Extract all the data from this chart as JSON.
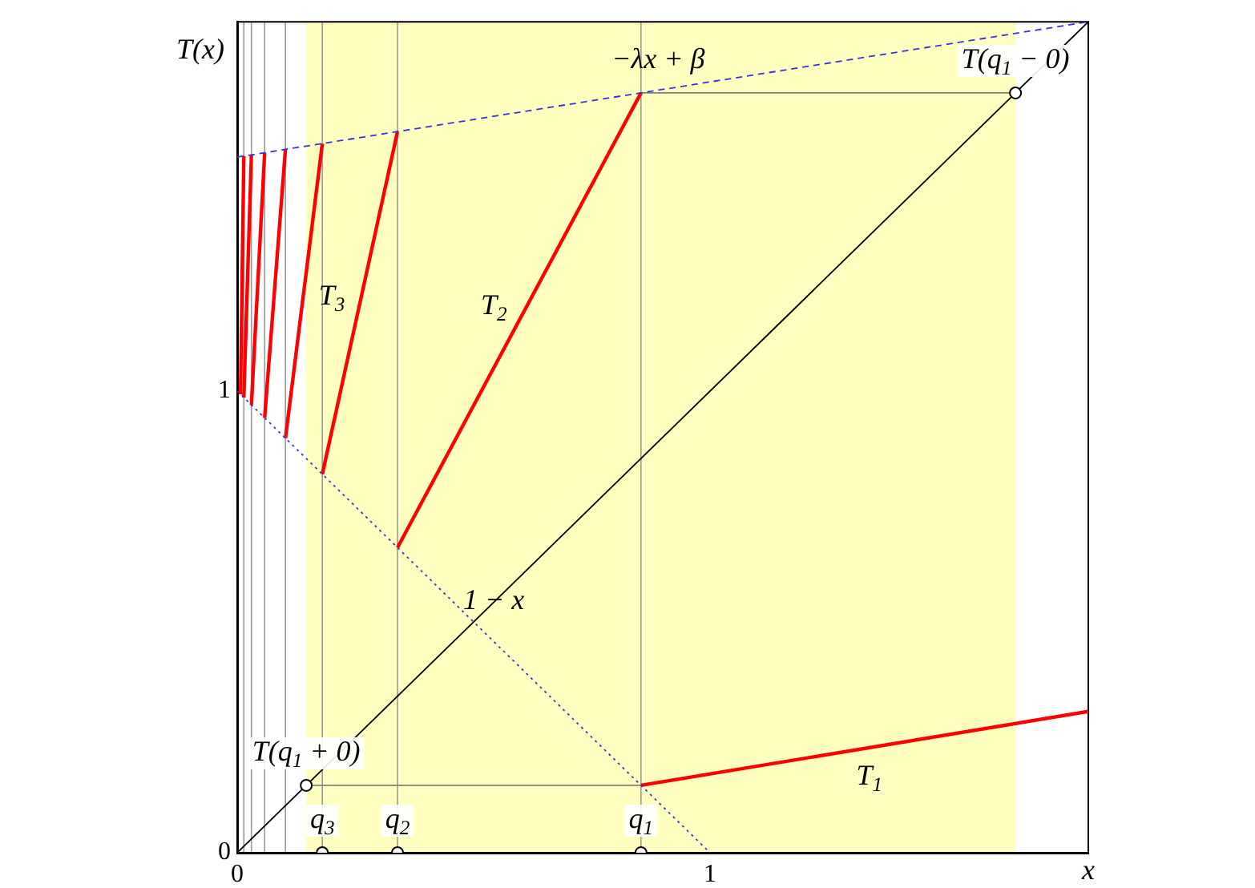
{
  "chart_data": {
    "type": "line",
    "xlabel": "x",
    "ylabel": "T(x)",
    "xlim": [
      0,
      1.8
    ],
    "ylim": [
      0,
      1.8
    ],
    "xticks": [
      0,
      1
    ],
    "yticks": [
      0,
      1
    ],
    "grid": false,
    "legend": false,
    "series": [
      {
        "color": "#000000",
        "line_style": "solid",
        "marker": "none",
        "x": [
          0,
          1.8
        ],
        "values": [
          0,
          1.8
        ]
      },
      {
        "name": "−λx + β",
        "color": "#3333dd",
        "line_style": "dashed",
        "marker": "none",
        "x": [
          0,
          1.8
        ],
        "values": [
          1.507,
          1.8
        ]
      },
      {
        "name": "1 − x",
        "color": "#3333dd",
        "line_style": "dotted",
        "marker": "none",
        "x": [
          0,
          1
        ],
        "values": [
          1,
          0
        ]
      },
      {
        "color": "#808080",
        "line_style": "solid",
        "marker": "none",
        "x": [
          0.854,
          0.146
        ],
        "values": [
          0.146,
          0.146
        ]
      },
      {
        "color": "#808080",
        "line_style": "solid",
        "marker": "none",
        "x": [
          0.854,
          1.646
        ],
        "values": [
          1.646,
          1.646
        ]
      },
      {
        "name": "T$_{1}$",
        "color": "#ff0000",
        "line_style": "solid",
        "marker": "none",
        "x": [
          1.8,
          0.854
        ],
        "values": [
          0.306,
          0.146
        ]
      },
      {
        "name": "T$_{2}$",
        "color": "#ff0000",
        "line_style": "solid",
        "marker": "none",
        "x": [
          0.339,
          0.854
        ],
        "values": [
          0.661,
          1.646
        ]
      },
      {
        "name": "T$_{3}$",
        "color": "#ff0000",
        "line_style": "solid",
        "marker": "none",
        "x": [
          0.18,
          0.339
        ],
        "values": [
          0.82,
          1.562
        ]
      },
      {
        "color": "#ff0000",
        "line_style": "solid",
        "marker": "none",
        "x": [
          0.102,
          0.18
        ],
        "values": [
          0.898,
          1.536
        ]
      },
      {
        "color": "#ff0000",
        "line_style": "solid",
        "marker": "none",
        "x": [
          0.058,
          0.102
        ],
        "values": [
          0.942,
          1.524
        ]
      },
      {
        "color": "#ff0000",
        "line_style": "solid",
        "marker": "none",
        "x": [
          0.03,
          0.058
        ],
        "values": [
          0.97,
          1.516
        ]
      },
      {
        "color": "#ff0000",
        "line_style": "solid",
        "marker": "none",
        "x": [
          0.014,
          0.03
        ],
        "values": [
          0.986,
          1.512
        ]
      },
      {
        "color": "#ff0000",
        "line_style": "solid",
        "marker": "none",
        "x": [
          0.007,
          0.014
        ],
        "values": [
          0.993,
          1.509
        ]
      },
      {
        "type": "scatter",
        "color": "#000000",
        "marker": "circle",
        "x": [
          0.18,
          0.339,
          0.854,
          0.146,
          1.646
        ],
        "values": [
          0,
          0,
          0,
          0.146,
          1.646
        ]
      }
    ],
    "bands": [
      {
        "axis": "x",
        "from": 0.146,
        "to": 1.646,
        "color": "#ffffc0"
      }
    ],
    "ref_lines": [
      {
        "axis": "x",
        "value": 0.014,
        "color": "#999999"
      },
      {
        "axis": "x",
        "value": 0.03,
        "color": "#999999"
      },
      {
        "axis": "x",
        "value": 0.058,
        "color": "#999999"
      },
      {
        "axis": "x",
        "value": 0.102,
        "color": "#999999"
      },
      {
        "axis": "x",
        "value": 0.18,
        "color": "#999999"
      },
      {
        "axis": "x",
        "value": 0.339,
        "color": "#999999"
      },
      {
        "axis": "x",
        "value": 0.854,
        "color": "#999999"
      }
    ],
    "annotations": [
      {
        "text": "T(q$_{1}$ − 0)",
        "x": 1.646,
        "y": 1.646
      },
      {
        "text": "T(q$_{1}$ + 0)",
        "x": 0.146,
        "y": 0.146
      },
      {
        "text": "q$_{3}$",
        "x": 0.18,
        "y": 0
      },
      {
        "text": "q$_{2}$",
        "x": 0.339,
        "y": 0
      },
      {
        "text": "q$_{1}$",
        "x": 0.854,
        "y": 0
      }
    ]
  }
}
